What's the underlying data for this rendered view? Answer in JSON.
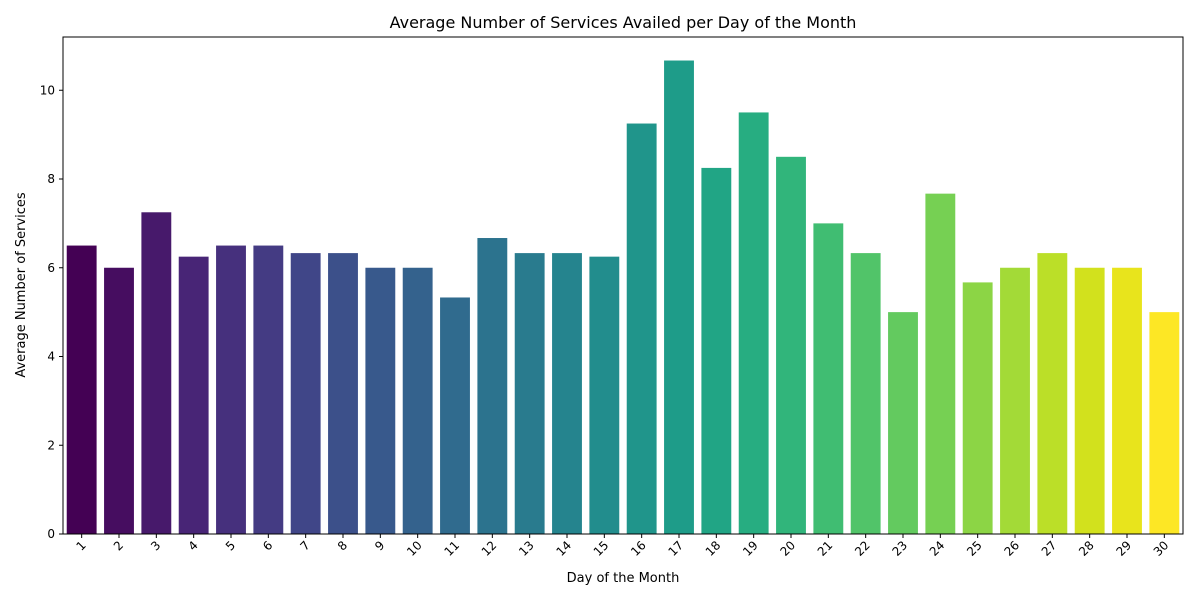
{
  "chart_data": {
    "type": "bar",
    "title": "Average Number of Services Availed per Day of the Month",
    "xlabel": "Day of the Month",
    "ylabel": "Average Number of Services",
    "categories": [
      "1",
      "2",
      "3",
      "4",
      "5",
      "6",
      "7",
      "8",
      "9",
      "10",
      "11",
      "12",
      "13",
      "14",
      "15",
      "16",
      "17",
      "18",
      "19",
      "20",
      "21",
      "22",
      "23",
      "24",
      "25",
      "26",
      "27",
      "28",
      "29",
      "30"
    ],
    "values": [
      6.5,
      6.0,
      7.25,
      6.25,
      6.5,
      6.5,
      6.33,
      6.33,
      6.0,
      6.0,
      5.33,
      6.67,
      6.33,
      6.33,
      6.25,
      9.25,
      10.67,
      8.25,
      9.5,
      8.5,
      7.0,
      6.33,
      5.0,
      7.67,
      5.67,
      6.0,
      6.33,
      6.0,
      6.0,
      5.0
    ],
    "colors": [
      "#440154",
      "#471365",
      "#482475",
      "#463480",
      "#414487",
      "#3b528b",
      "#355f8d",
      "#2f6c8e",
      "#2a788e",
      "#25848e",
      "#21918c",
      "#1e9c89",
      "#22a884",
      "#2fb47c",
      "#44bf70",
      "#5ec962",
      "#7ad151",
      "#9bd93c",
      "#bddf26",
      "#dfe318",
      "#fde725"
    ],
    "yticks": [
      0,
      2,
      4,
      6,
      8,
      10
    ],
    "ylim": [
      0,
      11.2
    ],
    "grid": false,
    "legend": "none"
  }
}
